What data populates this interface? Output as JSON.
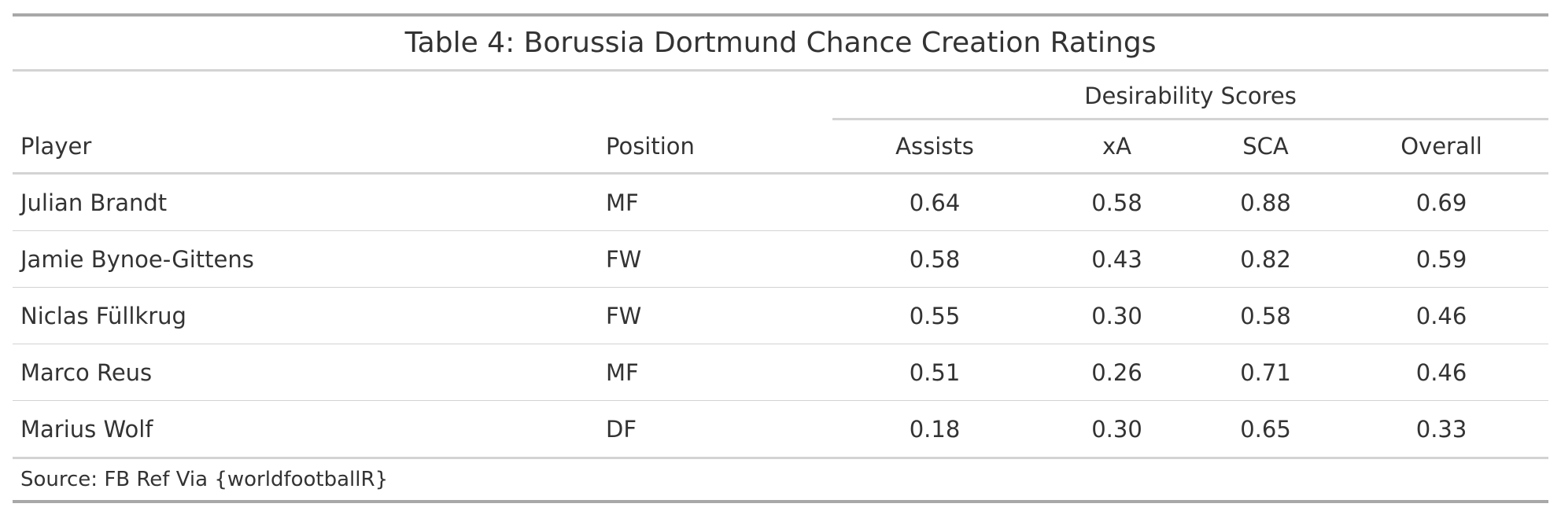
{
  "chart_data": {
    "type": "table",
    "title": "Table 4: Borussia Dortmund Chance Creation Ratings",
    "spanner": "Desirability Scores",
    "columns": [
      "Player",
      "Position",
      "Assists",
      "xA",
      "SCA",
      "Overall"
    ],
    "rows": [
      [
        "Julian Brandt",
        "MF",
        "0.64",
        "0.58",
        "0.88",
        "0.69"
      ],
      [
        "Jamie Bynoe-Gittens",
        "FW",
        "0.58",
        "0.43",
        "0.82",
        "0.59"
      ],
      [
        "Niclas Füllkrug",
        "FW",
        "0.55",
        "0.30",
        "0.58",
        "0.46"
      ],
      [
        "Marco Reus",
        "MF",
        "0.51",
        "0.26",
        "0.71",
        "0.46"
      ],
      [
        "Marius Wolf",
        "DF",
        "0.18",
        "0.30",
        "0.65",
        "0.33"
      ]
    ],
    "source": "Source: FB Ref Via {worldfootballR}"
  }
}
